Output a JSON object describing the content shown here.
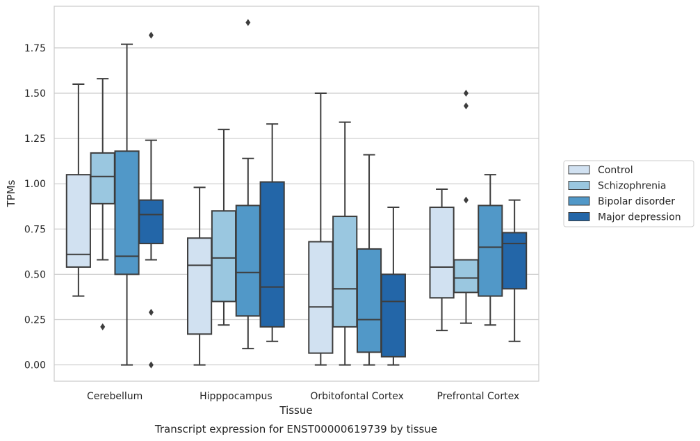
{
  "chart_data": {
    "type": "box",
    "title": "Transcript expression for ENST00000619739 by tissue",
    "xlabel": "Tissue",
    "ylabel": "TPMs",
    "ylim": [
      -0.09,
      1.98
    ],
    "y_ticks": [
      "0.00",
      "0.25",
      "0.50",
      "0.75",
      "1.00",
      "1.25",
      "1.50",
      "1.75"
    ],
    "grid": true,
    "legend_position": "right",
    "categories": [
      "Cerebellum",
      "Hipppocampus",
      "Orbitofontal Cortex",
      "Prefrontal Cortex"
    ],
    "series": [
      {
        "name": "Control",
        "color": "#d1e1f1",
        "boxes": [
          {
            "whisker_low": 0.38,
            "q1": 0.54,
            "median": 0.61,
            "q3": 1.05,
            "whisker_high": 1.55,
            "outliers": []
          },
          {
            "whisker_low": 0.0,
            "q1": 0.17,
            "median": 0.55,
            "q3": 0.7,
            "whisker_high": 0.98,
            "outliers": []
          },
          {
            "whisker_low": 0.0,
            "q1": 0.065,
            "median": 0.32,
            "q3": 0.68,
            "whisker_high": 1.5,
            "outliers": []
          },
          {
            "whisker_low": 0.19,
            "q1": 0.37,
            "median": 0.54,
            "q3": 0.87,
            "whisker_high": 0.97,
            "outliers": []
          }
        ]
      },
      {
        "name": "Schizophrenia",
        "color": "#9ac7e0",
        "boxes": [
          {
            "whisker_low": 0.58,
            "q1": 0.89,
            "median": 1.04,
            "q3": 1.17,
            "whisker_high": 1.58,
            "outliers": [
              0.21
            ]
          },
          {
            "whisker_low": 0.22,
            "q1": 0.35,
            "median": 0.59,
            "q3": 0.85,
            "whisker_high": 1.3,
            "outliers": []
          },
          {
            "whisker_low": 0.0,
            "q1": 0.21,
            "median": 0.42,
            "q3": 0.82,
            "whisker_high": 1.34,
            "outliers": []
          },
          {
            "whisker_low": 0.23,
            "q1": 0.4,
            "median": 0.48,
            "q3": 0.58,
            "whisker_high": 0.58,
            "outliers": [
              1.5,
              1.43,
              0.91
            ]
          }
        ]
      },
      {
        "name": "Bipolar disorder",
        "color": "#5198c8",
        "boxes": [
          {
            "whisker_low": 0.0,
            "q1": 0.5,
            "median": 0.6,
            "q3": 1.18,
            "whisker_high": 1.77,
            "outliers": []
          },
          {
            "whisker_low": 0.09,
            "q1": 0.27,
            "median": 0.51,
            "q3": 0.88,
            "whisker_high": 1.14,
            "outliers": [
              1.89
            ]
          },
          {
            "whisker_low": 0.0,
            "q1": 0.07,
            "median": 0.25,
            "q3": 0.64,
            "whisker_high": 1.16,
            "outliers": []
          },
          {
            "whisker_low": 0.22,
            "q1": 0.38,
            "median": 0.65,
            "q3": 0.88,
            "whisker_high": 1.05,
            "outliers": []
          }
        ]
      },
      {
        "name": "Major depression",
        "color": "#2366a8",
        "boxes": [
          {
            "whisker_low": 0.58,
            "q1": 0.67,
            "median": 0.83,
            "q3": 0.91,
            "whisker_high": 1.24,
            "outliers": [
              1.82,
              0.29,
              0.0
            ]
          },
          {
            "whisker_low": 0.13,
            "q1": 0.21,
            "median": 0.43,
            "q3": 1.01,
            "whisker_high": 1.33,
            "outliers": []
          },
          {
            "whisker_low": 0.0,
            "q1": 0.045,
            "median": 0.35,
            "q3": 0.5,
            "whisker_high": 0.87,
            "outliers": []
          },
          {
            "whisker_low": 0.13,
            "q1": 0.42,
            "median": 0.67,
            "q3": 0.73,
            "whisker_high": 0.91,
            "outliers": []
          }
        ]
      }
    ]
  }
}
